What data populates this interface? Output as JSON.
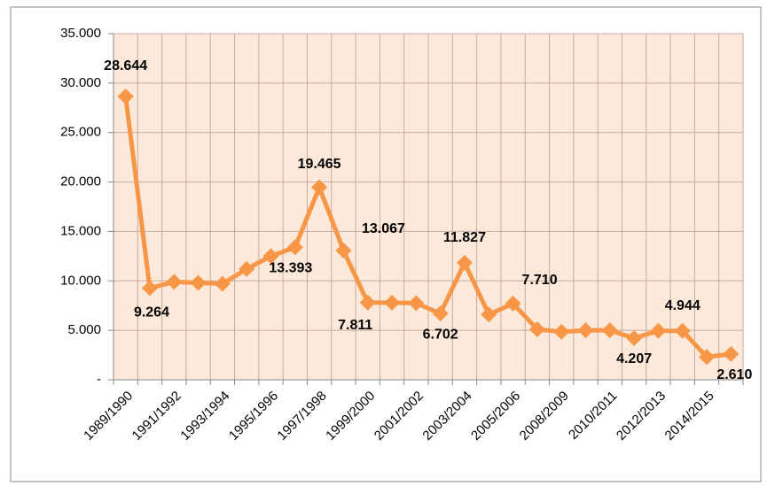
{
  "chart_data": {
    "type": "line",
    "categories": [
      "1989/1990",
      null,
      "1991/1992",
      null,
      "1993/1994",
      null,
      "1995/1996",
      null,
      "1997/1998",
      null,
      "1999/2000",
      null,
      "2001/2002",
      null,
      "2003/2004",
      null,
      "2005/2006",
      null,
      "2008/2009",
      null,
      "2010/2011",
      null,
      "2012/2013",
      null,
      "2014/2015",
      null
    ],
    "values": [
      28644,
      9264,
      9900,
      9800,
      9700,
      11200,
      12500,
      13393,
      19465,
      13067,
      7811,
      7800,
      7750,
      6702,
      11827,
      6600,
      7710,
      5100,
      4850,
      5000,
      5000,
      4207,
      4950,
      4944,
      2300,
      2610
    ],
    "value_labels": [
      "28.644",
      "9.264",
      null,
      null,
      null,
      null,
      null,
      "13.393",
      "19.465",
      "13.067",
      "7.811",
      null,
      null,
      "6.702",
      "11.827",
      null,
      "7.710",
      null,
      null,
      null,
      null,
      "4.207",
      null,
      "4.944",
      null,
      "2.610"
    ],
    "color": "#f79646",
    "ylim": [
      0,
      35000
    ],
    "yticks": [
      {
        "value": 0,
        "label": "-"
      },
      {
        "value": 5000,
        "label": "5.000"
      },
      {
        "value": 10000,
        "label": "10.000"
      },
      {
        "value": 15000,
        "label": "15.000"
      },
      {
        "value": 20000,
        "label": "20.000"
      },
      {
        "value": 25000,
        "label": "25.000"
      },
      {
        "value": 30000,
        "label": "30.000"
      },
      {
        "value": 35000,
        "label": "35.000"
      }
    ],
    "grid": true
  }
}
